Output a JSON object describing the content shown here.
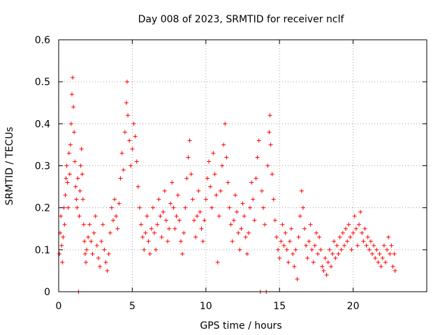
{
  "chart_data": {
    "type": "scatter",
    "title": "Day 008 of 2023, SRMTID for receiver nclf",
    "xlabel": "GPS time / hours",
    "ylabel": "SRMTID / TECUs",
    "xlim": [
      0,
      25
    ],
    "ylim": [
      0,
      0.6
    ],
    "xticks": [
      "0",
      "5",
      "10",
      "15",
      "20"
    ],
    "yticks": [
      "0",
      "0.1",
      "0.2",
      "0.3",
      "0.4",
      "0.5",
      "0.6"
    ],
    "grid": true,
    "marker": "plus",
    "series": [
      {
        "name": "SRMTID",
        "color": "#ff0000",
        "points": [
          [
            0.05,
            0.09
          ],
          [
            0.1,
            0.14
          ],
          [
            0.15,
            0.18
          ],
          [
            0.2,
            0.11
          ],
          [
            0.25,
            0.07
          ],
          [
            0.3,
            0.13
          ],
          [
            0.35,
            0.2
          ],
          [
            0.4,
            0.16
          ],
          [
            0.45,
            0.23
          ],
          [
            0.5,
            0.27
          ],
          [
            0.55,
            0.3
          ],
          [
            0.6,
            0.26
          ],
          [
            0.65,
            0.2
          ],
          [
            0.7,
            0.33
          ],
          [
            0.75,
            0.28
          ],
          [
            0.8,
            0.35
          ],
          [
            0.85,
            0.4
          ],
          [
            0.9,
            0.47
          ],
          [
            0.95,
            0.51
          ],
          [
            1.0,
            0.44
          ],
          [
            1.05,
            0.38
          ],
          [
            1.1,
            0.31
          ],
          [
            1.15,
            0.25
          ],
          [
            1.2,
            0.22
          ],
          [
            1.25,
            0.2
          ],
          [
            1.3,
            0.27
          ],
          [
            1.35,
            0.0
          ],
          [
            1.4,
            0.18
          ],
          [
            1.45,
            0.24
          ],
          [
            1.5,
            0.3
          ],
          [
            1.55,
            0.34
          ],
          [
            1.6,
            0.28
          ],
          [
            1.65,
            0.22
          ],
          [
            1.7,
            0.16
          ],
          [
            1.75,
            0.12
          ],
          [
            1.8,
            0.09
          ],
          [
            1.85,
            0.07
          ],
          [
            1.9,
            0.1
          ],
          [
            2.0,
            0.13
          ],
          [
            2.1,
            0.16
          ],
          [
            2.2,
            0.12
          ],
          [
            2.3,
            0.09
          ],
          [
            2.4,
            0.14
          ],
          [
            2.5,
            0.18
          ],
          [
            2.6,
            0.11
          ],
          [
            2.7,
            0.08
          ],
          [
            2.8,
            0.06
          ],
          [
            2.9,
            0.12
          ],
          [
            3.0,
            0.16
          ],
          [
            3.1,
            0.1
          ],
          [
            3.2,
            0.07
          ],
          [
            3.3,
            0.05
          ],
          [
            3.4,
            0.09
          ],
          [
            3.5,
            0.14
          ],
          [
            3.6,
            0.2
          ],
          [
            3.7,
            0.17
          ],
          [
            3.8,
            0.22
          ],
          [
            3.9,
            0.18
          ],
          [
            4.0,
            0.15
          ],
          [
            4.1,
            0.21
          ],
          [
            4.2,
            0.27
          ],
          [
            4.3,
            0.33
          ],
          [
            4.4,
            0.29
          ],
          [
            4.5,
            0.38
          ],
          [
            4.6,
            0.45
          ],
          [
            4.65,
            0.5
          ],
          [
            4.7,
            0.42
          ],
          [
            4.8,
            0.36
          ],
          [
            4.9,
            0.3
          ],
          [
            5.0,
            0.34
          ],
          [
            5.1,
            0.4
          ],
          [
            5.2,
            0.37
          ],
          [
            5.3,
            0.31
          ],
          [
            5.4,
            0.25
          ],
          [
            5.5,
            0.2
          ],
          [
            5.6,
            0.16
          ],
          [
            5.7,
            0.13
          ],
          [
            5.8,
            0.1
          ],
          [
            5.9,
            0.14
          ],
          [
            6.0,
            0.18
          ],
          [
            6.1,
            0.12
          ],
          [
            6.2,
            0.09
          ],
          [
            6.3,
            0.15
          ],
          [
            6.4,
            0.2
          ],
          [
            6.5,
            0.14
          ],
          [
            6.6,
            0.1
          ],
          [
            6.7,
            0.16
          ],
          [
            6.8,
            0.22
          ],
          [
            6.9,
            0.18
          ],
          [
            7.0,
            0.13
          ],
          [
            7.1,
            0.19
          ],
          [
            7.2,
            0.24
          ],
          [
            7.3,
            0.17
          ],
          [
            7.4,
            0.12
          ],
          [
            7.5,
            0.15
          ],
          [
            7.6,
            0.21
          ],
          [
            7.7,
            0.26
          ],
          [
            7.8,
            0.2
          ],
          [
            7.9,
            0.15
          ],
          [
            8.0,
            0.18
          ],
          [
            8.1,
            0.23
          ],
          [
            8.2,
            0.17
          ],
          [
            8.3,
            0.12
          ],
          [
            8.4,
            0.09
          ],
          [
            8.5,
            0.14
          ],
          [
            8.6,
            0.2
          ],
          [
            8.7,
            0.27
          ],
          [
            8.8,
            0.32
          ],
          [
            8.9,
            0.36
          ],
          [
            9.0,
            0.28
          ],
          [
            9.1,
            0.22
          ],
          [
            9.2,
            0.17
          ],
          [
            9.3,
            0.13
          ],
          [
            9.4,
            0.18
          ],
          [
            9.5,
            0.24
          ],
          [
            9.6,
            0.19
          ],
          [
            9.7,
            0.15
          ],
          [
            9.8,
            0.12
          ],
          [
            9.9,
            0.17
          ],
          [
            10.0,
            0.22
          ],
          [
            10.1,
            0.27
          ],
          [
            10.2,
            0.31
          ],
          [
            10.3,
            0.25
          ],
          [
            10.4,
            0.2
          ],
          [
            10.5,
            0.33
          ],
          [
            10.6,
            0.28
          ],
          [
            10.7,
            0.23
          ],
          [
            10.8,
            0.07
          ],
          [
            10.9,
            0.18
          ],
          [
            11.0,
            0.24
          ],
          [
            11.1,
            0.3
          ],
          [
            11.2,
            0.35
          ],
          [
            11.3,
            0.4
          ],
          [
            11.4,
            0.32
          ],
          [
            11.5,
            0.26
          ],
          [
            11.6,
            0.2
          ],
          [
            11.7,
            0.16
          ],
          [
            11.8,
            0.12
          ],
          [
            11.9,
            0.17
          ],
          [
            12.0,
            0.23
          ],
          [
            12.1,
            0.19
          ],
          [
            12.2,
            0.14
          ],
          [
            12.3,
            0.1
          ],
          [
            12.4,
            0.15
          ],
          [
            12.5,
            0.21
          ],
          [
            12.6,
            0.18
          ],
          [
            12.7,
            0.13
          ],
          [
            12.8,
            0.09
          ],
          [
            12.9,
            0.14
          ],
          [
            13.0,
            0.2
          ],
          [
            13.1,
            0.26
          ],
          [
            13.2,
            0.22
          ],
          [
            13.3,
            0.17
          ],
          [
            13.4,
            0.27
          ],
          [
            13.5,
            0.32
          ],
          [
            13.6,
            0.36
          ],
          [
            13.7,
            0.0
          ],
          [
            13.8,
            0.24
          ],
          [
            13.9,
            0.2
          ],
          [
            14.0,
            0.16
          ],
          [
            14.1,
            0.0
          ],
          [
            14.2,
            0.3
          ],
          [
            14.3,
            0.38
          ],
          [
            14.35,
            0.42
          ],
          [
            14.4,
            0.35
          ],
          [
            14.5,
            0.28
          ],
          [
            14.6,
            0.22
          ],
          [
            14.7,
            0.17
          ],
          [
            14.8,
            0.13
          ],
          [
            14.9,
            0.1
          ],
          [
            15.0,
            0.08
          ],
          [
            15.1,
            0.12
          ],
          [
            15.2,
            0.16
          ],
          [
            15.3,
            0.11
          ],
          [
            15.4,
            0.14
          ],
          [
            15.5,
            0.1
          ],
          [
            15.6,
            0.07
          ],
          [
            15.7,
            0.12
          ],
          [
            15.8,
            0.15
          ],
          [
            15.9,
            0.09
          ],
          [
            16.0,
            0.06
          ],
          [
            16.1,
            0.1
          ],
          [
            16.2,
            0.03
          ],
          [
            16.3,
            0.13
          ],
          [
            16.4,
            0.18
          ],
          [
            16.5,
            0.24
          ],
          [
            16.6,
            0.2
          ],
          [
            16.7,
            0.15
          ],
          [
            16.8,
            0.11
          ],
          [
            16.9,
            0.08
          ],
          [
            17.0,
            0.12
          ],
          [
            17.1,
            0.16
          ],
          [
            17.2,
            0.1
          ],
          [
            17.3,
            0.07
          ],
          [
            17.4,
            0.11
          ],
          [
            17.5,
            0.14
          ],
          [
            17.6,
            0.09
          ],
          [
            17.7,
            0.13
          ],
          [
            17.8,
            0.1
          ],
          [
            17.9,
            0.06
          ],
          [
            18.0,
            0.05
          ],
          [
            18.1,
            0.08
          ],
          [
            18.2,
            0.04
          ],
          [
            18.3,
            0.07
          ],
          [
            18.4,
            0.1
          ],
          [
            18.5,
            0.06
          ],
          [
            18.6,
            0.09
          ],
          [
            18.7,
            0.12
          ],
          [
            18.8,
            0.08
          ],
          [
            18.9,
            0.11
          ],
          [
            19.0,
            0.09
          ],
          [
            19.1,
            0.13
          ],
          [
            19.2,
            0.1
          ],
          [
            19.3,
            0.14
          ],
          [
            19.4,
            0.11
          ],
          [
            19.5,
            0.15
          ],
          [
            19.6,
            0.12
          ],
          [
            19.7,
            0.16
          ],
          [
            19.8,
            0.13
          ],
          [
            19.9,
            0.1
          ],
          [
            20.0,
            0.14
          ],
          [
            20.1,
            0.18
          ],
          [
            20.2,
            0.15
          ],
          [
            20.3,
            0.11
          ],
          [
            20.4,
            0.16
          ],
          [
            20.5,
            0.19
          ],
          [
            20.6,
            0.14
          ],
          [
            20.7,
            0.12
          ],
          [
            20.8,
            0.15
          ],
          [
            20.9,
            0.11
          ],
          [
            21.0,
            0.13
          ],
          [
            21.1,
            0.1
          ],
          [
            21.2,
            0.12
          ],
          [
            21.3,
            0.09
          ],
          [
            21.4,
            0.11
          ],
          [
            21.5,
            0.08
          ],
          [
            21.6,
            0.1
          ],
          [
            21.7,
            0.07
          ],
          [
            21.8,
            0.09
          ],
          [
            21.9,
            0.06
          ],
          [
            22.0,
            0.08
          ],
          [
            22.1,
            0.11
          ],
          [
            22.2,
            0.07
          ],
          [
            22.3,
            0.1
          ],
          [
            22.4,
            0.13
          ],
          [
            22.5,
            0.09
          ],
          [
            22.6,
            0.11
          ],
          [
            22.7,
            0.06
          ],
          [
            22.8,
            0.09
          ],
          [
            22.85,
            0.05
          ]
        ]
      }
    ]
  }
}
